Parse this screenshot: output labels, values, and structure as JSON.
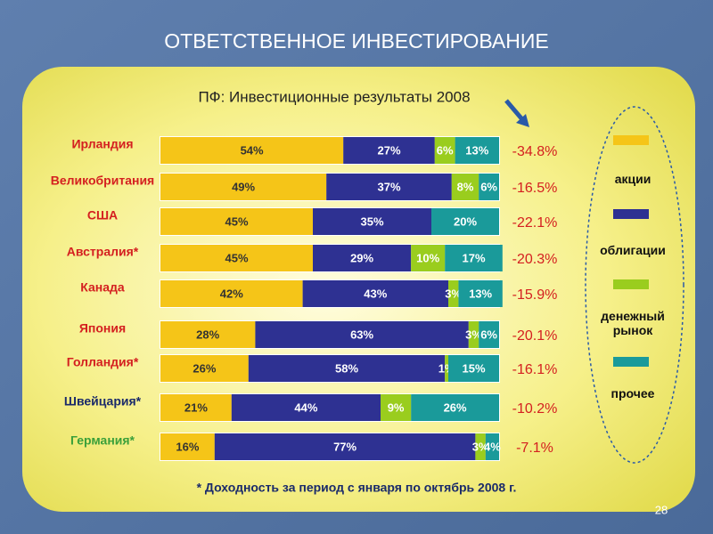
{
  "chart_data": {
    "type": "stacked-bar",
    "title": "ОТВЕТСТВЕННОЕ ИНВЕСТИРОВАНИЕ",
    "subtitle": "ПФ: Инвестиционные результаты 2008",
    "footnote": "* Доходность за период с января по октябрь 2008 г.",
    "page_number": "28",
    "categories": [
      "Ирландия",
      "Великобритания",
      "США",
      "Австралия*",
      "Канада",
      "Япония",
      "Голландия*",
      "Швейцария*",
      "Германия*"
    ],
    "category_colors": [
      "#d42020",
      "#d42020",
      "#d42020",
      "#d42020",
      "#d42020",
      "#d42020",
      "#d42020",
      "#1a2a6a",
      "#3aa03a"
    ],
    "xlim": [
      0,
      100
    ],
    "series": [
      {
        "name": "акции",
        "color": "#f5c518",
        "text_color": "#333333",
        "values": [
          54,
          49,
          45,
          45,
          42,
          28,
          26,
          21,
          16
        ],
        "value_labels": [
          "54%",
          "49%",
          "45%",
          "45%",
          "42%",
          "28%",
          "26%",
          "21%",
          "16%"
        ]
      },
      {
        "name": "облигации",
        "color": "#2e3192",
        "text_color": "#ffffff",
        "values": [
          27,
          37,
          35,
          29,
          43,
          63,
          58,
          44,
          77
        ],
        "value_labels": [
          "27%",
          "37%",
          "35%",
          "29%",
          "43%",
          "63%",
          "58%",
          "44%",
          "77%"
        ]
      },
      {
        "name": "денежный рынок",
        "color": "#9acd1e",
        "text_color": "#ffffff",
        "values": [
          6,
          8,
          null,
          10,
          3,
          3,
          1,
          9,
          3
        ],
        "value_labels": [
          "6%",
          "8%",
          null,
          "10%",
          "3%",
          "3%",
          "1%",
          "9%",
          "3%"
        ]
      },
      {
        "name": "прочее",
        "color": "#1a9a9a",
        "text_color": "#ffffff",
        "values": [
          13,
          6,
          20,
          17,
          13,
          6,
          15,
          26,
          4
        ],
        "value_labels": [
          "13%",
          "6%",
          "20%",
          "17%",
          "13%",
          "6%",
          "15%",
          "26%",
          "4%"
        ]
      }
    ],
    "returns": {
      "color": "#d42020",
      "values": [
        -34.8,
        -16.5,
        -22.1,
        -20.3,
        -15.9,
        -20.1,
        -16.1,
        -10.2,
        -7.1
      ],
      "value_labels": [
        "-34.8%",
        "-16.5%",
        "-22.1%",
        "-20.3%",
        "-15.9%",
        "-20.1%",
        "-16.1%",
        "-10.2%",
        "-7.1%"
      ]
    }
  }
}
